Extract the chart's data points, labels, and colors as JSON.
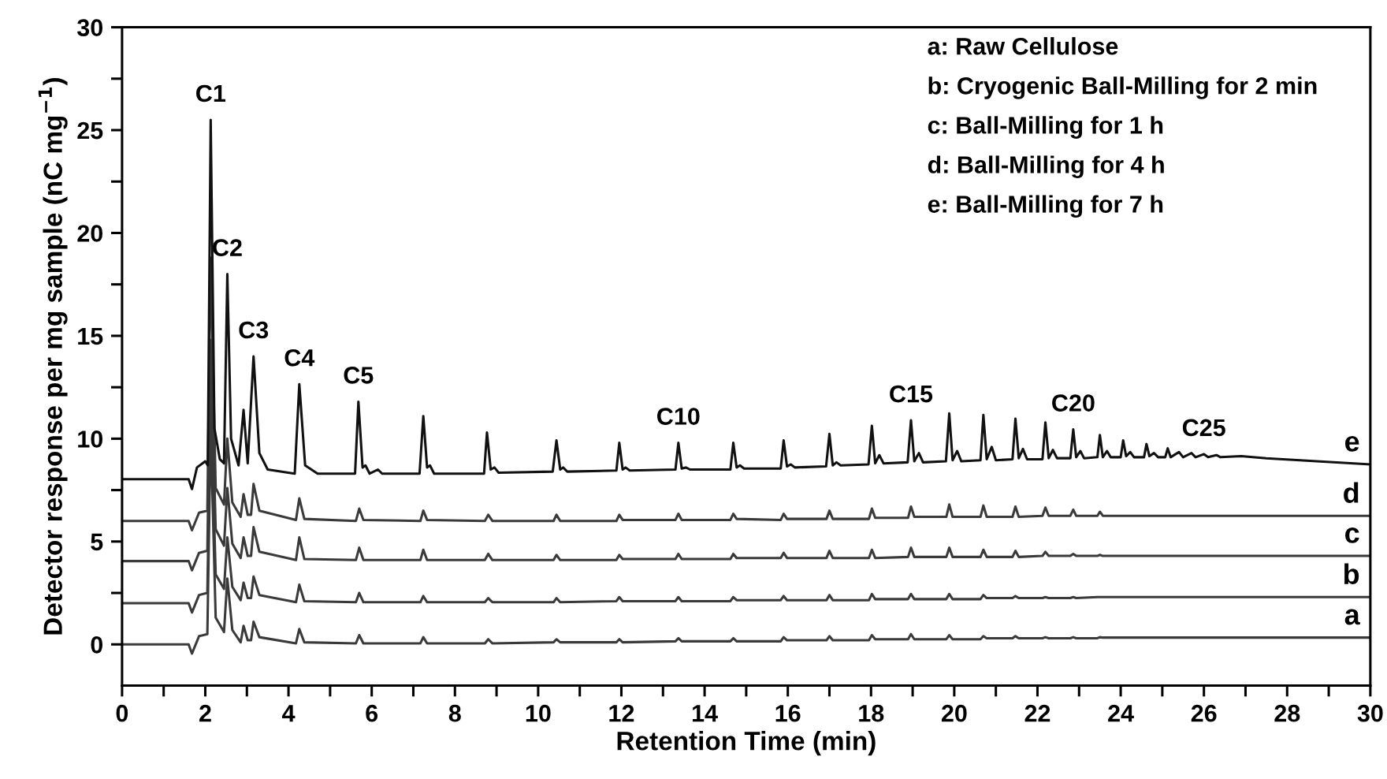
{
  "chart_data": {
    "type": "line",
    "xlabel": "Retention Time (min)",
    "ylabel": "Detector response per mg sample (nC mg$^{−1}$)",
    "xlim": [
      0,
      30
    ],
    "ylim": [
      -2,
      30
    ],
    "xticks": [
      0,
      {
        "value": 1,
        "label": null
      },
      2,
      {
        "value": 3,
        "label": null
      },
      4,
      {
        "value": 5,
        "label": null
      },
      6,
      {
        "value": 7,
        "label": null
      },
      8,
      {
        "value": 9,
        "label": null
      },
      10,
      {
        "value": 11,
        "label": null
      },
      12,
      {
        "value": 13,
        "label": null
      },
      14,
      {
        "value": 15,
        "label": null
      },
      16,
      {
        "value": 17,
        "label": null
      },
      18,
      {
        "value": 19,
        "label": null
      },
      20,
      {
        "value": 21,
        "label": null
      },
      22,
      {
        "value": 23,
        "label": null
      },
      24,
      {
        "value": 25,
        "label": null
      },
      26,
      {
        "value": 27,
        "label": null
      },
      28,
      {
        "value": 29,
        "label": null
      },
      30
    ],
    "yticks": [
      0,
      {
        "value": 2.5,
        "label": null
      },
      5,
      {
        "value": 7.5,
        "label": null
      },
      10,
      {
        "value": 12.5,
        "label": null
      },
      15,
      {
        "value": 17.5,
        "label": null
      },
      20,
      {
        "value": 22.5,
        "label": null
      },
      25,
      {
        "value": 27.5,
        "label": null
      },
      30
    ],
    "grid": false,
    "legend": false,
    "marker": "none",
    "line_style": "solid",
    "x": [
      0,
      1.6,
      1.68,
      1.85,
      2.05,
      2.13,
      2.25,
      2.45,
      2.53,
      2.65,
      2.85,
      2.92,
      3.02,
      3.1,
      3.16,
      3.3,
      4.18,
      4.26,
      4.38,
      5.62,
      5.7,
      5.8,
      7.17,
      7.24,
      7.33,
      8.72,
      8.8,
      8.9,
      10.37,
      10.44,
      10.53,
      11.88,
      11.95,
      12.03,
      13.3,
      13.37,
      13.45,
      14.62,
      14.69,
      14.77,
      15.83,
      15.9,
      15.98,
      16.93,
      17.0,
      17.08,
      17.95,
      18.02,
      18.1,
      18.89,
      18.96,
      19.04,
      19.81,
      19.88,
      19.96,
      20.63,
      20.7,
      20.78,
      21.4,
      21.47,
      21.55,
      22.12,
      22.19,
      22.27,
      22.79,
      22.86,
      22.93,
      23.44,
      23.5,
      23.57,
      30
    ],
    "series": [
      {
        "name": "a",
        "color": "#3a3a3a",
        "values": [
          0,
          0,
          -0.45,
          0.4,
          0.5,
          10.5,
          1.3,
          0.6,
          3.2,
          0.7,
          0.1,
          0.9,
          0.2,
          0.2,
          1.1,
          0.35,
          0.05,
          0.75,
          0.1,
          0.05,
          0.45,
          0.05,
          0.05,
          0.35,
          0.05,
          0.05,
          0.25,
          0.05,
          0.1,
          0.25,
          0.1,
          0.1,
          0.25,
          0.1,
          0.15,
          0.3,
          0.15,
          0.15,
          0.3,
          0.15,
          0.15,
          0.35,
          0.2,
          0.2,
          0.4,
          0.2,
          0.2,
          0.45,
          0.25,
          0.25,
          0.5,
          0.25,
          0.25,
          0.45,
          0.25,
          0.25,
          0.4,
          0.3,
          0.3,
          0.4,
          0.3,
          0.3,
          0.35,
          0.3,
          0.3,
          0.35,
          0.3,
          0.3,
          0.35,
          0.33,
          0.33
        ]
      },
      {
        "name": "b",
        "color": "#3a3a3a",
        "values": [
          2.0,
          2.0,
          1.55,
          2.4,
          2.5,
          12.0,
          3.4,
          2.7,
          5.2,
          2.8,
          2.15,
          3.0,
          2.25,
          2.25,
          3.3,
          2.4,
          2.05,
          2.9,
          2.1,
          2.05,
          2.5,
          2.05,
          2.05,
          2.35,
          2.05,
          2.05,
          2.25,
          2.05,
          2.05,
          2.25,
          2.05,
          2.1,
          2.3,
          2.1,
          2.1,
          2.3,
          2.1,
          2.1,
          2.3,
          2.15,
          2.15,
          2.35,
          2.15,
          2.15,
          2.4,
          2.15,
          2.15,
          2.45,
          2.2,
          2.2,
          2.45,
          2.2,
          2.2,
          2.45,
          2.2,
          2.2,
          2.4,
          2.25,
          2.25,
          2.35,
          2.25,
          2.25,
          2.3,
          2.25,
          2.25,
          2.3,
          2.25,
          2.3,
          2.3,
          2.3,
          2.3
        ]
      },
      {
        "name": "c",
        "color": "#3a3a3a",
        "values": [
          4.05,
          4.05,
          3.6,
          4.45,
          4.55,
          14.8,
          5.6,
          4.8,
          7.6,
          4.9,
          4.2,
          5.2,
          4.3,
          4.3,
          5.7,
          4.5,
          4.1,
          5.2,
          4.15,
          4.1,
          4.7,
          4.1,
          4.1,
          4.6,
          4.1,
          4.1,
          4.4,
          4.1,
          4.1,
          4.35,
          4.1,
          4.1,
          4.35,
          4.15,
          4.15,
          4.4,
          4.15,
          4.15,
          4.4,
          4.2,
          4.2,
          4.45,
          4.2,
          4.2,
          4.55,
          4.2,
          4.2,
          4.6,
          4.2,
          4.25,
          4.7,
          4.25,
          4.25,
          4.7,
          4.25,
          4.25,
          4.6,
          4.25,
          4.25,
          4.55,
          4.25,
          4.3,
          4.5,
          4.3,
          4.3,
          4.4,
          4.3,
          4.3,
          4.35,
          4.3,
          4.3
        ]
      },
      {
        "name": "d",
        "color": "#3a3a3a",
        "values": [
          6.0,
          6.0,
          5.55,
          6.4,
          6.5,
          18.8,
          7.6,
          6.8,
          10.0,
          6.9,
          6.2,
          7.3,
          6.3,
          6.3,
          7.8,
          6.5,
          6.05,
          7.1,
          6.1,
          6.0,
          6.6,
          6.05,
          6.0,
          6.5,
          6.05,
          6.0,
          6.3,
          6.0,
          6.0,
          6.3,
          6.0,
          6.0,
          6.3,
          6.05,
          6.05,
          6.35,
          6.05,
          6.05,
          6.35,
          6.1,
          6.05,
          6.35,
          6.1,
          6.1,
          6.5,
          6.1,
          6.1,
          6.6,
          6.15,
          6.15,
          6.7,
          6.2,
          6.2,
          6.8,
          6.2,
          6.2,
          6.75,
          6.2,
          6.2,
          6.7,
          6.2,
          6.25,
          6.65,
          6.25,
          6.25,
          6.55,
          6.25,
          6.25,
          6.45,
          6.25,
          6.25
        ]
      },
      {
        "name": "e",
        "color": "#111111",
        "x": [
          0,
          1.6,
          1.68,
          1.8,
          2.0,
          2.06,
          2.13,
          2.22,
          2.35,
          2.45,
          2.53,
          2.62,
          2.8,
          2.92,
          3.02,
          3.16,
          3.3,
          3.5,
          4.15,
          4.26,
          4.4,
          4.7,
          5.6,
          5.68,
          5.78,
          5.85,
          5.95,
          6.15,
          6.25,
          7.15,
          7.24,
          7.33,
          7.4,
          7.5,
          8.7,
          8.77,
          8.86,
          8.95,
          9.05,
          10.35,
          10.44,
          10.53,
          10.6,
          10.7,
          11.88,
          11.95,
          12.03,
          12.1,
          12.2,
          13.3,
          13.37,
          13.45,
          13.55,
          13.65,
          14.62,
          14.69,
          14.77,
          14.85,
          14.95,
          15.83,
          15.9,
          15.98,
          16.07,
          16.17,
          16.92,
          17.0,
          17.08,
          17.17,
          17.27,
          17.94,
          18.02,
          18.1,
          18.2,
          18.3,
          18.88,
          18.96,
          19.04,
          19.15,
          19.25,
          19.8,
          19.88,
          19.96,
          20.07,
          20.17,
          20.63,
          20.7,
          20.78,
          20.9,
          21.0,
          21.4,
          21.47,
          21.55,
          21.65,
          21.75,
          22.12,
          22.19,
          22.27,
          22.37,
          22.47,
          22.79,
          22.86,
          22.93,
          23.03,
          23.12,
          23.44,
          23.5,
          23.57,
          23.67,
          23.76,
          24.0,
          24.06,
          24.13,
          24.23,
          24.32,
          24.56,
          24.62,
          24.69,
          24.8,
          24.9,
          25.07,
          25.13,
          25.2,
          25.4,
          25.5,
          25.7,
          25.8,
          26.0,
          26.1,
          26.3,
          26.4,
          26.9,
          27.5,
          30
        ],
        "values": [
          8.03,
          8.03,
          7.55,
          8.6,
          8.9,
          8.7,
          25.5,
          10.5,
          9.0,
          8.8,
          18.0,
          10.0,
          8.7,
          11.4,
          8.8,
          14.0,
          9.3,
          8.5,
          8.3,
          12.65,
          8.7,
          8.3,
          8.3,
          11.8,
          8.6,
          8.7,
          8.3,
          8.5,
          8.3,
          8.3,
          11.1,
          8.6,
          8.7,
          8.3,
          8.3,
          10.3,
          8.5,
          8.6,
          8.35,
          8.4,
          9.92,
          8.5,
          8.6,
          8.4,
          8.45,
          9.8,
          8.5,
          8.6,
          8.45,
          8.5,
          9.8,
          8.55,
          8.6,
          8.5,
          8.5,
          9.8,
          8.6,
          8.7,
          8.55,
          8.55,
          9.92,
          8.65,
          8.75,
          8.6,
          8.65,
          10.23,
          8.7,
          8.85,
          8.7,
          8.75,
          10.63,
          8.8,
          9.2,
          8.8,
          8.85,
          10.89,
          8.9,
          9.3,
          8.85,
          8.9,
          11.23,
          8.95,
          9.4,
          8.9,
          8.95,
          11.15,
          9.0,
          9.6,
          8.95,
          9.0,
          10.97,
          9.05,
          9.5,
          9.0,
          9.0,
          10.79,
          9.05,
          9.45,
          9.05,
          9.05,
          10.45,
          9.1,
          9.4,
          9.05,
          9.1,
          10.18,
          9.1,
          9.4,
          9.1,
          9.1,
          9.92,
          9.15,
          9.35,
          9.1,
          9.1,
          9.74,
          9.15,
          9.3,
          9.1,
          9.1,
          9.53,
          9.1,
          9.35,
          9.1,
          9.3,
          9.1,
          9.25,
          9.1,
          9.2,
          9.1,
          9.15,
          9.05,
          8.75
        ]
      }
    ],
    "annotations": [
      "a: Raw Cellulose",
      "b: Cryogenic Ball-Milling for 2 min",
      "c: Ball-Milling for 1 h",
      "d: Ball-Milling for 4 h",
      "e: Ball-Milling for 7 h",
      {
        "text": "C1",
        "x": 2.13,
        "y": 25.5
      },
      {
        "text": "C2",
        "x": 2.53,
        "y": 18.0
      },
      {
        "text": "C3",
        "x": 3.16,
        "y": 14.0
      },
      {
        "text": "C4",
        "x": 4.26,
        "y": 12.65
      },
      {
        "text": "C5",
        "x": 5.68,
        "y": 11.8
      },
      {
        "text": "C10",
        "x": 13.37,
        "y": 9.8
      },
      {
        "text": "C15",
        "x": 18.96,
        "y": 10.89
      },
      {
        "text": "C20",
        "x": 22.86,
        "y": 10.45
      },
      {
        "text": "C25",
        "x": 26.0,
        "y": 9.25
      }
    ]
  }
}
